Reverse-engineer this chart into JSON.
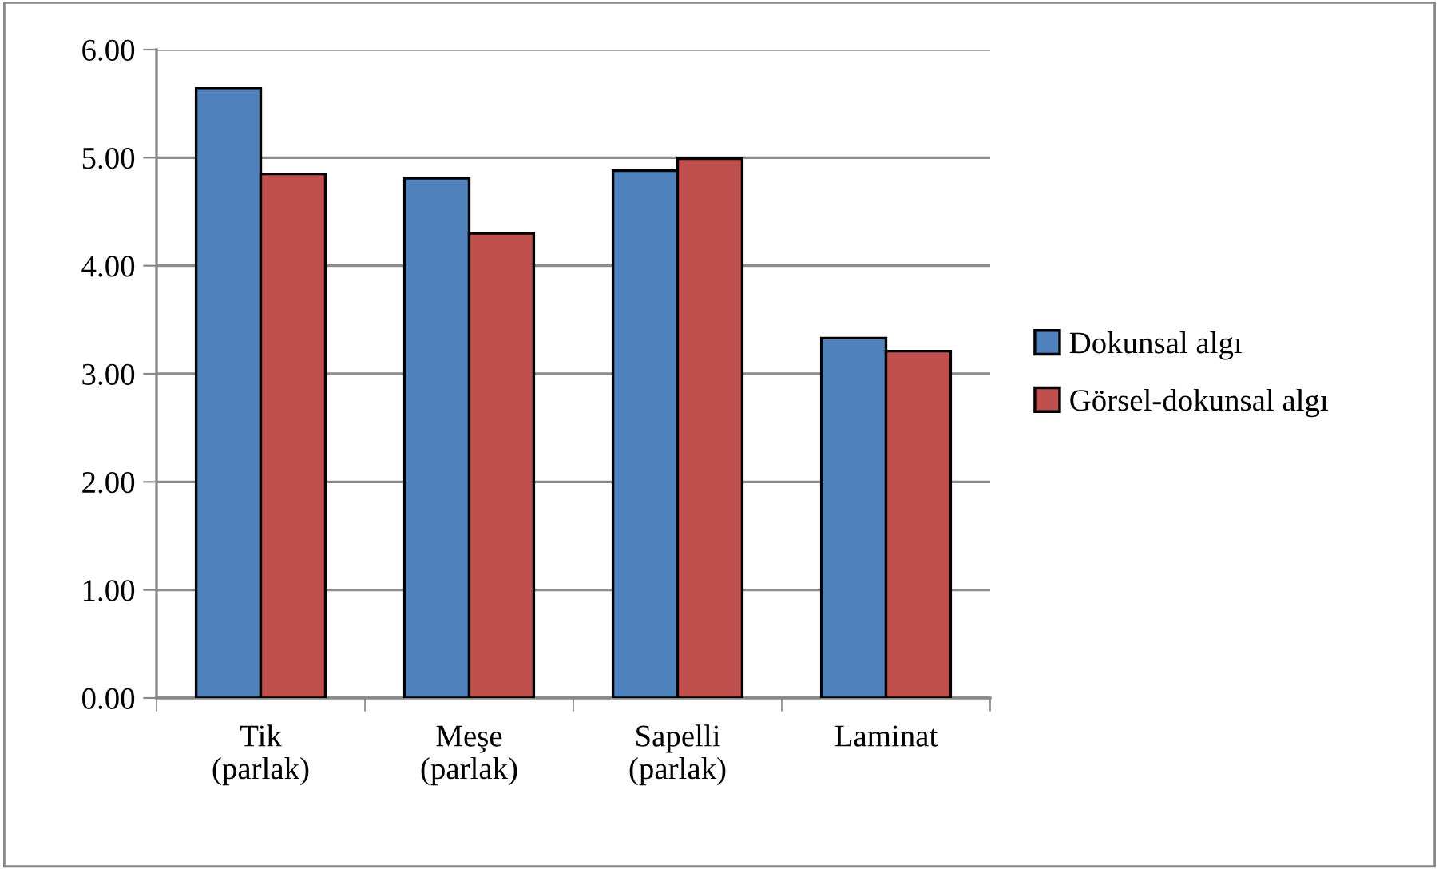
{
  "chart_data": {
    "type": "bar",
    "categories": [
      "Tik\n(parlak)",
      "Meşe\n(parlak)",
      "Sapelli\n(parlak)",
      "Laminat"
    ],
    "series": [
      {
        "name": "Dokunsal algı",
        "color": "#4f81bd",
        "values": [
          5.64,
          4.81,
          4.88,
          3.33
        ]
      },
      {
        "name": "Görsel-dokunsal algı",
        "color": "#c0504d",
        "values": [
          4.85,
          4.3,
          4.99,
          3.21
        ]
      }
    ],
    "ylim": [
      0,
      6
    ],
    "yticks": [
      {
        "value": 0,
        "label": "0.00"
      },
      {
        "value": 1,
        "label": "1.00"
      },
      {
        "value": 2,
        "label": "2.00"
      },
      {
        "value": 3,
        "label": "3.00"
      },
      {
        "value": 4,
        "label": "4.00"
      },
      {
        "value": 5,
        "label": "5.00"
      },
      {
        "value": 6,
        "label": "6.00"
      }
    ],
    "grid": "y",
    "legend": "right"
  }
}
